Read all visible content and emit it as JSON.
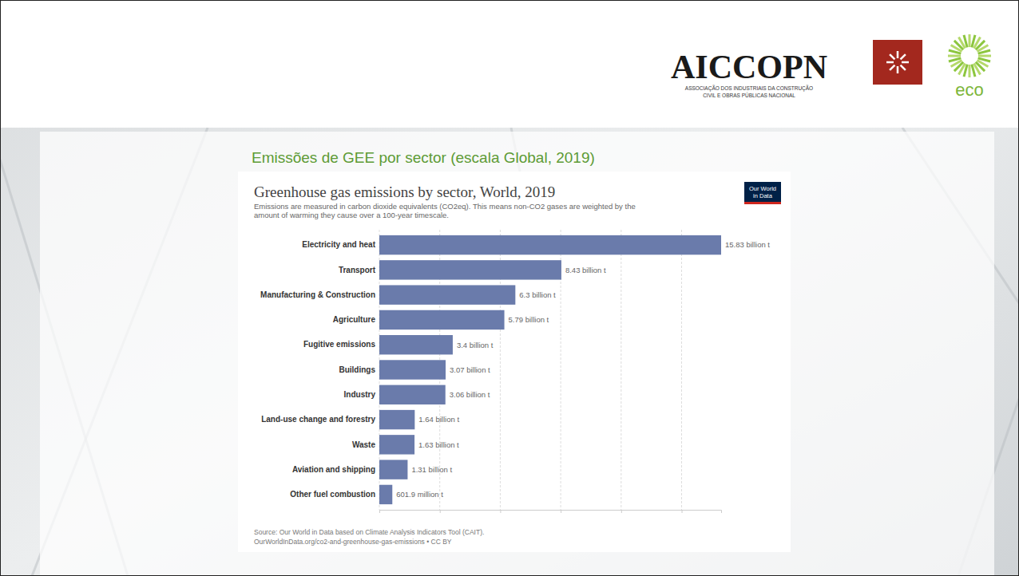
{
  "header": {
    "logo_name": "AICCOPN",
    "logo_subtitle": [
      "ASSOCIAÇÃO DOS INDUSTRIAIS DA CONSTRUÇÃO",
      "CIVIL E OBRAS PÚBLICAS NACIONAL"
    ],
    "eco_logo": "eco"
  },
  "slide_title": "Emissões de GEE por sector (escala Global, 2019)",
  "chart_data": {
    "type": "bar",
    "orientation": "horizontal",
    "title": "Greenhouse gas emissions by sector, World, 2019",
    "subtitle": [
      "Emissions are measured in carbon dioxide equivalents (CO2eq). This means non-CO2 gases are weighted by the",
      "amount of warming they cause over a 100-year timescale."
    ],
    "badge": [
      "Our World",
      "in Data"
    ],
    "source": [
      "Source: Our World in Data based on Climate Analysis Indicators Tool (CAIT).",
      "OurWorldInData.org/co2-and-greenhouse-gas-emissions • CC BY"
    ],
    "categories": [
      "Electricity and heat",
      "Transport",
      "Manufacturing & Construction",
      "Agriculture",
      "Fugitive emissions",
      "Buildings",
      "Industry",
      "Land-use change and forestry",
      "Waste",
      "Aviation and shipping",
      "Other fuel combustion"
    ],
    "values": [
      15.83,
      8.43,
      6.3,
      5.79,
      3.4,
      3.07,
      3.06,
      1.64,
      1.63,
      1.31,
      0.6019
    ],
    "value_labels": [
      "15.83 billion t",
      "8.43 billion t",
      "6.3 billion t",
      "5.79 billion t",
      "3.4 billion t",
      "3.07 billion t",
      "3.06 billion t",
      "1.64 billion t",
      "1.63 billion t",
      "1.31 billion t",
      "601.9 million t"
    ],
    "color": "#6a7bab",
    "xlim": [
      0,
      15.83
    ],
    "xticks": [
      0,
      2.8,
      5.6,
      8.4,
      11.2,
      14
    ],
    "grid": true,
    "data_labels": true,
    "tick_labels": false
  }
}
